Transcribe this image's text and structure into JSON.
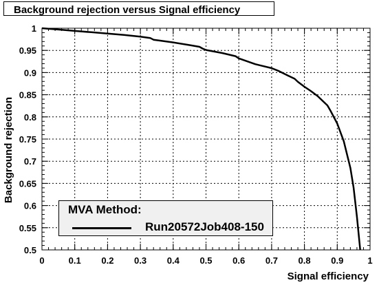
{
  "chart_data": {
    "type": "line",
    "title": "Background rejection versus Signal efficiency",
    "xlabel": "Signal efficiency",
    "ylabel": "Background rejection",
    "xlim": [
      0,
      1
    ],
    "ylim": [
      0.5,
      1
    ],
    "grid": true,
    "x_ticks": [
      "0",
      "0.1",
      "0.2",
      "0.3",
      "0.4",
      "0.5",
      "0.6",
      "0.7",
      "0.8",
      "0.9",
      "1"
    ],
    "y_ticks": [
      "0.5",
      "0.55",
      "0.6",
      "0.65",
      "0.7",
      "0.75",
      "0.8",
      "0.85",
      "0.9",
      "0.95",
      "1"
    ],
    "legend": {
      "header": "MVA Method:",
      "placement": "bottom-left"
    },
    "series": [
      {
        "name": "Run20572Job408-150",
        "color": "#000000",
        "x": [
          0.0,
          0.05,
          0.1,
          0.15,
          0.2,
          0.25,
          0.3,
          0.33,
          0.34,
          0.36,
          0.4,
          0.45,
          0.48,
          0.49,
          0.5,
          0.55,
          0.59,
          0.6,
          0.65,
          0.7,
          0.72,
          0.75,
          0.77,
          0.78,
          0.8,
          0.82,
          0.84,
          0.85,
          0.87,
          0.88,
          0.9,
          0.92,
          0.94,
          0.95,
          0.96,
          0.97
        ],
        "y": [
          1.0,
          0.997,
          0.994,
          0.991,
          0.988,
          0.985,
          0.981,
          0.978,
          0.974,
          0.972,
          0.968,
          0.962,
          0.958,
          0.954,
          0.951,
          0.944,
          0.937,
          0.932,
          0.919,
          0.91,
          0.904,
          0.893,
          0.886,
          0.879,
          0.868,
          0.858,
          0.847,
          0.84,
          0.826,
          0.813,
          0.785,
          0.745,
          0.685,
          0.64,
          0.575,
          0.5
        ]
      }
    ]
  }
}
